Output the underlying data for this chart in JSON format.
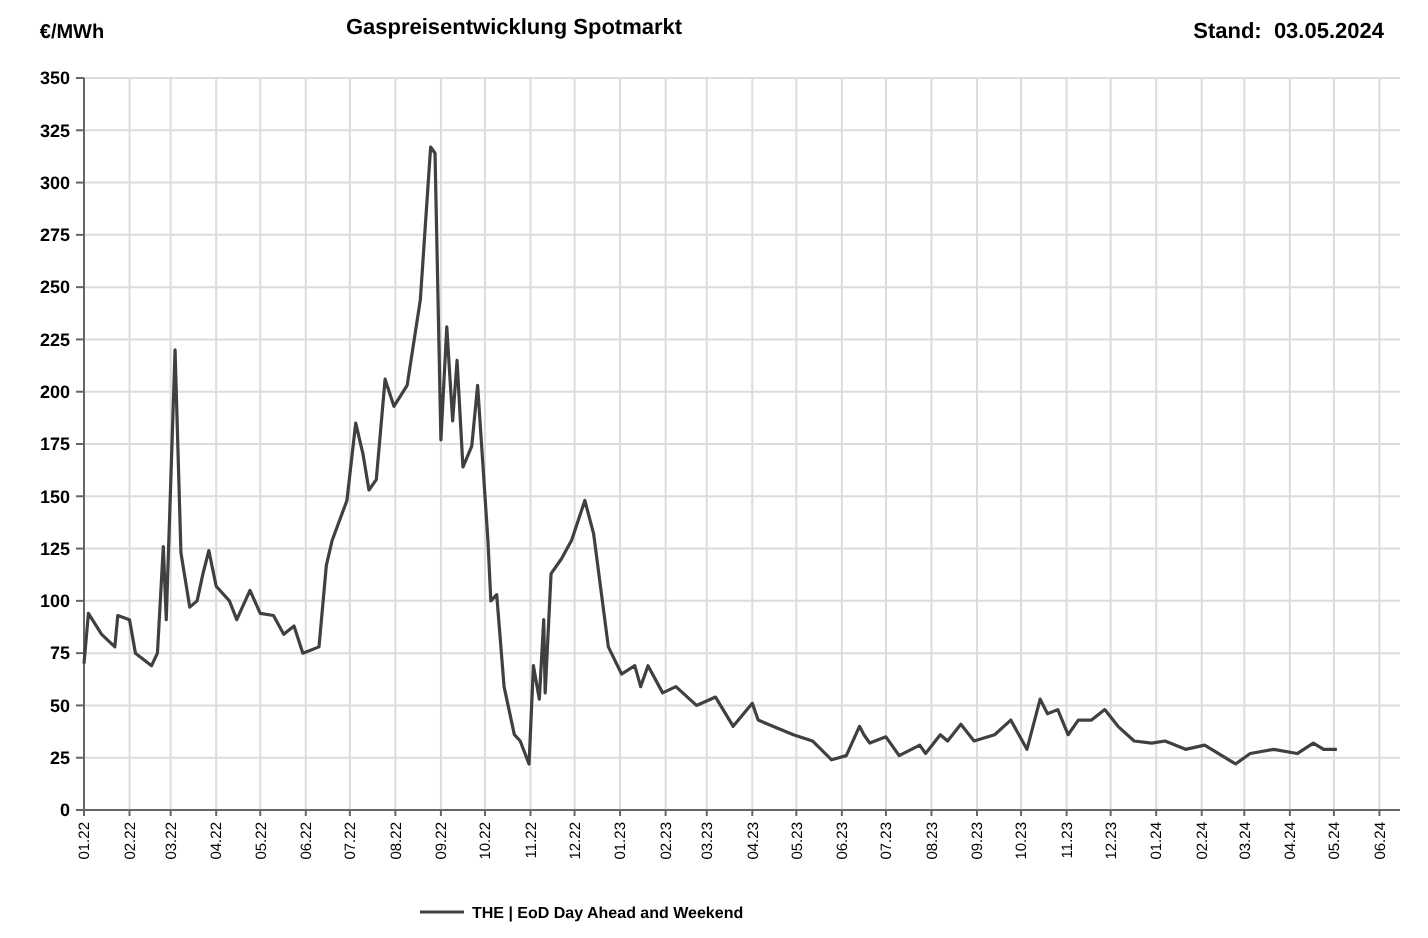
{
  "chart_data": {
    "type": "line",
    "title": "Gaspreisentwicklung Spotmarkt",
    "ylabel": "€/MWh",
    "annotations": [
      "Stand:  03.05.2024"
    ],
    "x": [
      "2022-01-01",
      "2022-01-04",
      "2022-01-13",
      "2022-01-22",
      "2022-01-24",
      "2022-02-01",
      "2022-02-05",
      "2022-02-16",
      "2022-02-20",
      "2022-02-24",
      "2022-02-26",
      "2022-03-02",
      "2022-03-04",
      "2022-03-08",
      "2022-03-14",
      "2022-03-19",
      "2022-03-23",
      "2022-03-27",
      "2022-04-01",
      "2022-04-10",
      "2022-04-15",
      "2022-04-24",
      "2022-05-01",
      "2022-05-10",
      "2022-05-17",
      "2022-05-24",
      "2022-05-30",
      "2022-06-10",
      "2022-06-15",
      "2022-06-19",
      "2022-06-29",
      "2022-07-05",
      "2022-07-10",
      "2022-07-14",
      "2022-07-19",
      "2022-07-25",
      "2022-07-31",
      "2022-08-09",
      "2022-08-18",
      "2022-08-25",
      "2022-08-28",
      "2022-09-01",
      "2022-09-05",
      "2022-09-09",
      "2022-09-12",
      "2022-09-16",
      "2022-09-22",
      "2022-09-26",
      "2022-10-03",
      "2022-10-05",
      "2022-10-09",
      "2022-10-14",
      "2022-10-21",
      "2022-10-25",
      "2022-10-31",
      "2022-11-03",
      "2022-11-07",
      "2022-11-10",
      "2022-11-11",
      "2022-11-15",
      "2022-11-22",
      "2022-11-29",
      "2022-12-08",
      "2022-12-14",
      "2022-12-24",
      "2023-01-02",
      "2023-01-11",
      "2023-01-15",
      "2023-01-20",
      "2023-01-30",
      "2023-02-08",
      "2023-02-22",
      "2023-03-07",
      "2023-03-19",
      "2023-04-01",
      "2023-04-05",
      "2023-04-29",
      "2023-05-12",
      "2023-05-25",
      "2023-06-04",
      "2023-06-13",
      "2023-06-16",
      "2023-06-20",
      "2023-07-01",
      "2023-07-10",
      "2023-07-24",
      "2023-07-28",
      "2023-08-07",
      "2023-08-12",
      "2023-08-21",
      "2023-08-30",
      "2023-09-13",
      "2023-09-24",
      "2023-10-05",
      "2023-10-14",
      "2023-10-19",
      "2023-10-26",
      "2023-11-02",
      "2023-11-09",
      "2023-11-18",
      "2023-11-27",
      "2023-12-06",
      "2023-12-17",
      "2023-12-29",
      "2024-01-07",
      "2024-01-21",
      "2024-02-03",
      "2024-02-24",
      "2024-03-05",
      "2024-03-21",
      "2024-04-06",
      "2024-04-17",
      "2024-04-24",
      "2024-05-03"
    ],
    "series": [
      {
        "name": "THE | EoD Day Ahead and Weekend",
        "color": "#404040",
        "values": [
          70,
          94,
          84,
          78,
          93,
          91,
          75,
          69,
          75,
          126,
          91,
          177,
          220,
          123,
          97,
          100,
          113,
          124,
          107,
          100,
          91,
          105,
          94,
          93,
          84,
          88,
          75,
          78,
          117,
          129,
          148,
          185,
          170,
          153,
          158,
          206,
          193,
          203,
          244,
          317,
          314,
          177,
          231,
          186,
          215,
          164,
          174,
          203,
          129,
          100,
          103,
          59,
          36,
          33,
          22,
          69,
          53,
          91,
          56,
          113,
          120,
          129,
          148,
          132,
          78,
          65,
          69,
          59,
          69,
          56,
          59,
          50,
          54,
          40,
          51,
          43,
          36,
          33,
          24,
          26,
          40,
          36,
          32,
          35,
          26,
          31,
          27,
          36,
          33,
          41,
          33,
          36,
          43,
          29,
          53,
          46,
          48,
          36,
          43,
          43,
          48,
          40,
          33,
          32,
          33,
          29,
          31,
          22,
          27,
          29,
          27,
          32,
          29,
          29
        ]
      }
    ],
    "xlim": [
      "2022-01-01",
      "2024-06-15"
    ],
    "xticks": [
      {
        "value": "2022-01-01",
        "label": "01.22"
      },
      {
        "value": "2022-02-01",
        "label": "02.22"
      },
      {
        "value": "2022-03-01",
        "label": "03.22"
      },
      {
        "value": "2022-04-01",
        "label": "04.22"
      },
      {
        "value": "2022-05-01",
        "label": "05.22"
      },
      {
        "value": "2022-06-01",
        "label": "06.22"
      },
      {
        "value": "2022-07-01",
        "label": "07.22"
      },
      {
        "value": "2022-08-01",
        "label": "08.22"
      },
      {
        "value": "2022-09-01",
        "label": "09.22"
      },
      {
        "value": "2022-10-01",
        "label": "10.22"
      },
      {
        "value": "2022-11-01",
        "label": "11.22"
      },
      {
        "value": "2022-12-01",
        "label": "12.22"
      },
      {
        "value": "2023-01-01",
        "label": "01.23"
      },
      {
        "value": "2023-02-01",
        "label": "02.23"
      },
      {
        "value": "2023-03-01",
        "label": "03.23"
      },
      {
        "value": "2023-04-01",
        "label": "04.23"
      },
      {
        "value": "2023-05-01",
        "label": "05.23"
      },
      {
        "value": "2023-06-01",
        "label": "06.23"
      },
      {
        "value": "2023-07-01",
        "label": "07.23"
      },
      {
        "value": "2023-08-01",
        "label": "08.23"
      },
      {
        "value": "2023-09-01",
        "label": "09.23"
      },
      {
        "value": "2023-10-01",
        "label": "10.23"
      },
      {
        "value": "2023-11-01",
        "label": "11.23"
      },
      {
        "value": "2023-12-01",
        "label": "12.23"
      },
      {
        "value": "2024-01-01",
        "label": "01.24"
      },
      {
        "value": "2024-02-01",
        "label": "02.24"
      },
      {
        "value": "2024-03-01",
        "label": "03.24"
      },
      {
        "value": "2024-04-01",
        "label": "04.24"
      },
      {
        "value": "2024-05-01",
        "label": "05.24"
      },
      {
        "value": "2024-06-01",
        "label": "06.24"
      }
    ],
    "ylim": [
      0,
      350
    ],
    "yticks": [
      0,
      25,
      50,
      75,
      100,
      125,
      150,
      175,
      200,
      225,
      250,
      275,
      300,
      325,
      350
    ],
    "grid": true,
    "legend": "bottom",
    "marker": "none",
    "line_style": "solid"
  }
}
